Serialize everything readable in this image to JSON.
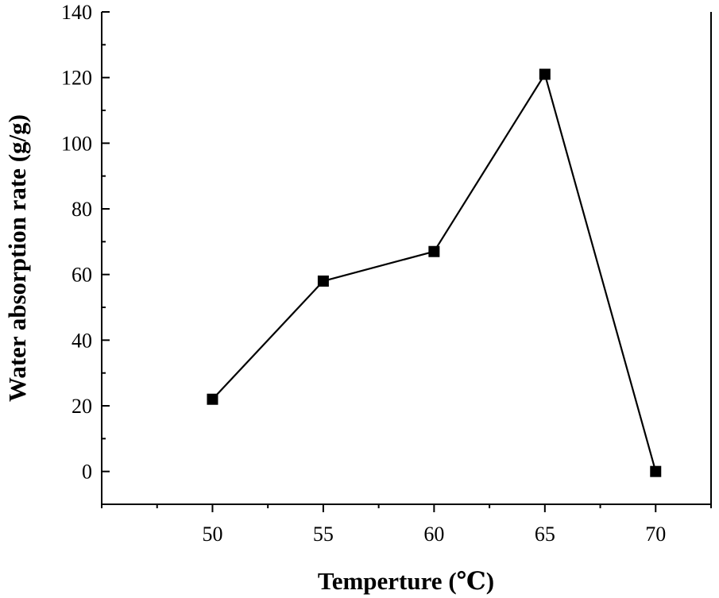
{
  "chart_data": {
    "type": "line",
    "title": "",
    "xlabel": "Temperture (℃)",
    "ylabel": "Water absorption rate (g/g)",
    "x": [
      50,
      55,
      60,
      65,
      70
    ],
    "series": [
      {
        "name": "Water absorption rate",
        "values": [
          22,
          58,
          67,
          121,
          0
        ],
        "marker": "square",
        "color": "#000000"
      }
    ],
    "xlim": [
      45,
      72.5
    ],
    "ylim": [
      -10,
      140
    ],
    "xticks": [
      50,
      55,
      60,
      65,
      70
    ],
    "yticks": [
      0,
      20,
      40,
      60,
      80,
      100,
      120,
      140
    ],
    "grid": false,
    "legend": "none"
  }
}
